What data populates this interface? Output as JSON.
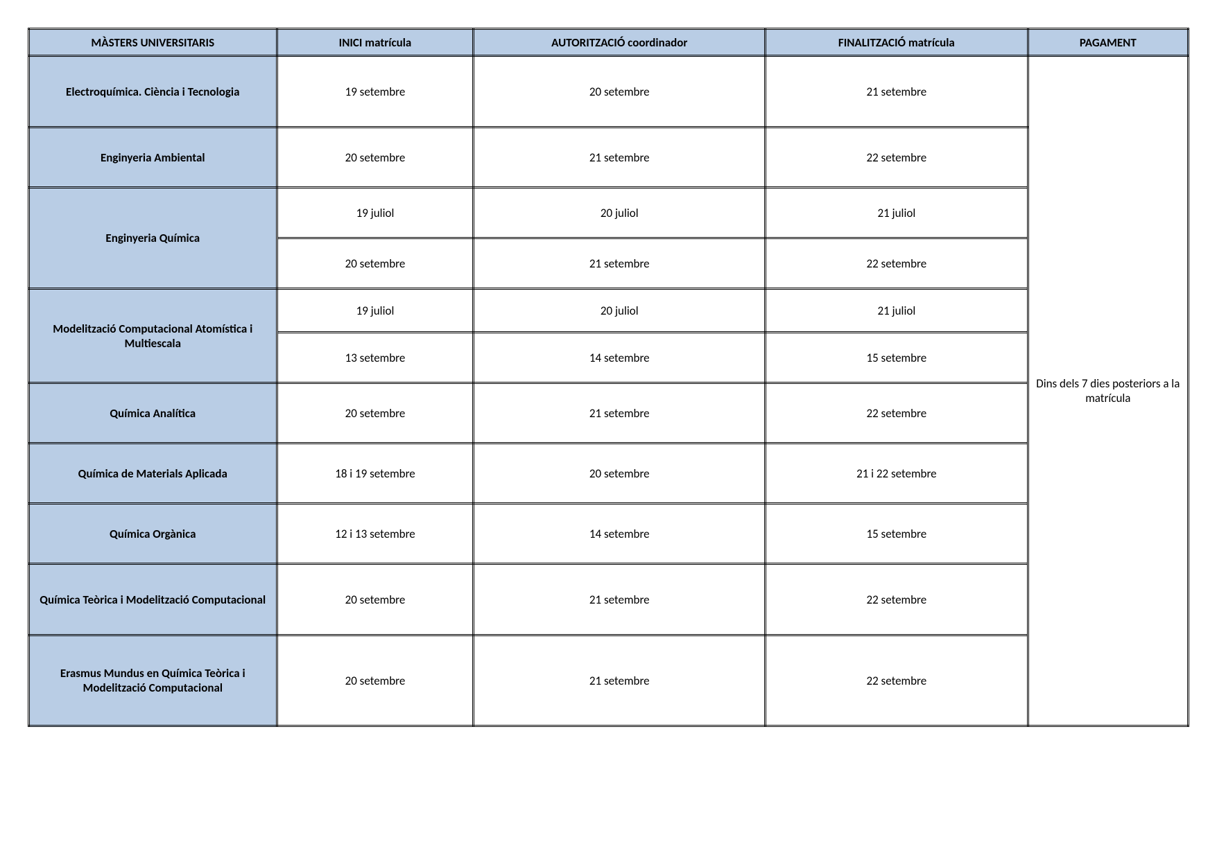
{
  "colors": {
    "header_bg": "#b9cde5",
    "rowhead_bg": "#b9cde5",
    "cell_bg": "#ffffff",
    "border": "#000000",
    "text": "#000000"
  },
  "table": {
    "headers": {
      "col1": "MÀSTERS UNIVERSITARIS",
      "col2": "INICI matrícula",
      "col3": "AUTORITZACIÓ coordinador",
      "col4": "FINALITZACIÓ matrícula",
      "col5": "PAGAMENT"
    },
    "pagament": "Dins dels 7 dies posteriors a la matrícula",
    "rows": [
      {
        "name": "Electroquímica. Ciència i Tecnologia",
        "periods": [
          {
            "inici": "19 setembre",
            "aut": "20 setembre",
            "fin": "21 setembre"
          }
        ]
      },
      {
        "name": "Enginyeria Ambiental",
        "periods": [
          {
            "inici": "20 setembre",
            "aut": "21 setembre",
            "fin": "22 setembre"
          }
        ]
      },
      {
        "name": "Enginyeria Química",
        "periods": [
          {
            "inici": "19 juliol",
            "aut": "20 juliol",
            "fin": "21 juliol"
          },
          {
            "inici": "20 setembre",
            "aut": "21 setembre",
            "fin": "22 setembre"
          }
        ]
      },
      {
        "name": "Modelització Computacional Atomística i Multiescala",
        "periods": [
          {
            "inici": "19 juliol",
            "aut": "20 juliol",
            "fin": "21 juliol"
          },
          {
            "inici": "13 setembre",
            "aut": "14 setembre",
            "fin": "15 setembre"
          }
        ]
      },
      {
        "name": "Química Analítica",
        "periods": [
          {
            "inici": "20 setembre",
            "aut": "21 setembre",
            "fin": "22 setembre"
          }
        ]
      },
      {
        "name": "Química de Materials Aplicada",
        "periods": [
          {
            "inici": "18 i 19 setembre",
            "aut": "20 setembre",
            "fin": "21 i 22 setembre"
          }
        ]
      },
      {
        "name": "Química Orgànica",
        "periods": [
          {
            "inici": "12 i 13 setembre",
            "aut": "14 setembre",
            "fin": "15 setembre"
          }
        ]
      },
      {
        "name": "Química Teòrica i Modelització Computacional",
        "periods": [
          {
            "inici": "20 setembre",
            "aut": "21 setembre",
            "fin": "22 setembre"
          }
        ]
      },
      {
        "name": "Erasmus Mundus en Química Teòrica i Modelització Computacional",
        "periods": [
          {
            "inici": "20 setembre",
            "aut": "21 setembre",
            "fin": "22 setembre"
          }
        ]
      }
    ]
  }
}
